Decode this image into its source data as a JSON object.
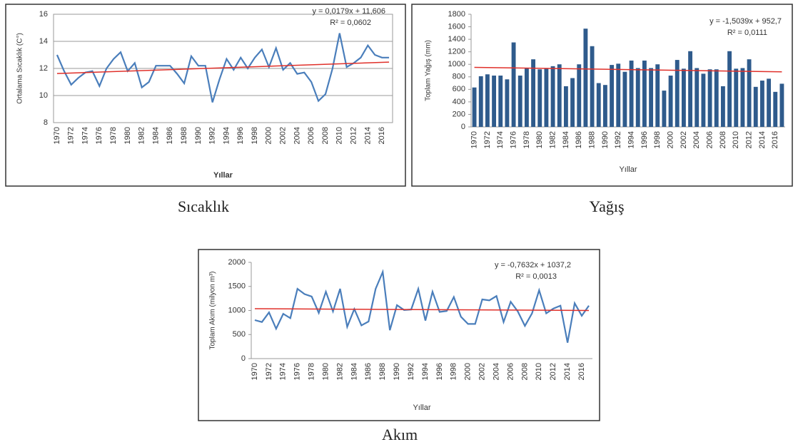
{
  "chart_data": [
    {
      "type": "line",
      "caption": "Sıcaklık",
      "x_label": "Yıllar",
      "y_label": "Ortalama Sıcaklık (C°)",
      "categories": [
        1970,
        null,
        1972,
        null,
        1974,
        null,
        1976,
        null,
        1978,
        null,
        1980,
        null,
        1982,
        null,
        1984,
        null,
        1986,
        null,
        1988,
        null,
        1990,
        null,
        1992,
        null,
        1994,
        null,
        1996,
        null,
        1998,
        null,
        2000,
        null,
        2002,
        null,
        2004,
        null,
        2006,
        null,
        2008,
        null,
        2010,
        null,
        2012,
        null,
        2014,
        null,
        2016,
        null
      ],
      "values": [
        13.0,
        11.8,
        10.8,
        11.3,
        11.7,
        11.8,
        10.7,
        12.0,
        12.7,
        13.2,
        11.8,
        12.4,
        10.6,
        11.0,
        12.2,
        12.2,
        12.2,
        11.6,
        10.9,
        12.9,
        12.2,
        12.2,
        9.5,
        11.2,
        12.7,
        11.9,
        12.8,
        12.0,
        12.8,
        13.4,
        12.1,
        13.5,
        11.9,
        12.4,
        11.6,
        11.7,
        11.0,
        9.6,
        10.1,
        12.0,
        14.6,
        12.1,
        12.4,
        12.8,
        13.7,
        13.0,
        12.8,
        12.8
      ],
      "color": "#4a7ebb",
      "ylim": [
        8,
        16
      ],
      "yticks": [
        8,
        10,
        12,
        14,
        16
      ],
      "grid": true,
      "trend": {
        "equation": "y = 0,0179x + 11,606",
        "r2": "R² = 0,0602",
        "slope": 0.0179,
        "intercept": 11.606,
        "color": "#e0302a"
      }
    },
    {
      "type": "bar",
      "caption": "Yağış",
      "x_label": "Yıllar",
      "y_label": "Toplam Yağış (mm)",
      "categories": [
        1970,
        null,
        1972,
        null,
        1974,
        null,
        1976,
        null,
        1978,
        null,
        1980,
        null,
        1982,
        null,
        1984,
        null,
        1986,
        null,
        1988,
        null,
        1990,
        null,
        1992,
        null,
        1994,
        null,
        1996,
        null,
        1998,
        null,
        2000,
        null,
        2002,
        null,
        2004,
        null,
        2006,
        null,
        2008,
        null,
        2010,
        null,
        2012,
        null,
        2014,
        null,
        2016,
        null
      ],
      "values": [
        630,
        810,
        840,
        820,
        820,
        760,
        1350,
        820,
        940,
        1080,
        920,
        940,
        970,
        1000,
        650,
        780,
        1000,
        1570,
        1290,
        700,
        670,
        990,
        1010,
        880,
        1060,
        940,
        1060,
        940,
        1000,
        580,
        820,
        1070,
        930,
        1210,
        940,
        850,
        920,
        920,
        650,
        1210,
        930,
        940,
        1080,
        640,
        740,
        770,
        560,
        690
      ],
      "color": "#2f5b8c",
      "ylim": [
        0,
        1800
      ],
      "yticks": [
        0,
        200,
        400,
        600,
        800,
        1000,
        1200,
        1400,
        1600,
        1800
      ],
      "grid": false,
      "trend": {
        "equation": "y = -1,5039x + 952,7",
        "r2": "R² = 0,0111",
        "slope": -1.5039,
        "intercept": 952.7,
        "color": "#e0302a"
      }
    },
    {
      "type": "line",
      "caption": "Akım",
      "x_label": "Yıllar",
      "y_label": "Toplam Akım (milyon m³)",
      "categories": [
        1970,
        null,
        1972,
        null,
        1974,
        null,
        1976,
        null,
        1978,
        null,
        1980,
        null,
        1982,
        null,
        1984,
        null,
        1986,
        null,
        1988,
        null,
        1990,
        null,
        1992,
        null,
        1994,
        null,
        1996,
        null,
        1998,
        null,
        2000,
        null,
        2002,
        null,
        2004,
        null,
        2006,
        null,
        2008,
        null,
        2010,
        null,
        2012,
        null,
        2014,
        null,
        2016,
        null
      ],
      "values": [
        800,
        760,
        960,
        620,
        930,
        840,
        1450,
        1340,
        1290,
        950,
        1390,
        980,
        1450,
        660,
        1030,
        690,
        770,
        1450,
        1800,
        590,
        1110,
        1010,
        1020,
        1450,
        790,
        1390,
        970,
        990,
        1280,
        870,
        720,
        720,
        1230,
        1210,
        1300,
        760,
        1180,
        980,
        680,
        940,
        1420,
        940,
        1040,
        1100,
        330,
        1150,
        890,
        1100
      ],
      "color": "#4a7ebb",
      "ylim": [
        0,
        2000
      ],
      "yticks": [
        0,
        500,
        1000,
        1500,
        2000
      ],
      "grid": false,
      "trend": {
        "equation": "y = -0,7632x + 1037,2",
        "r2": "R² = 0,0013",
        "slope": -0.7632,
        "intercept": 1037.2,
        "color": "#e0302a"
      }
    }
  ]
}
